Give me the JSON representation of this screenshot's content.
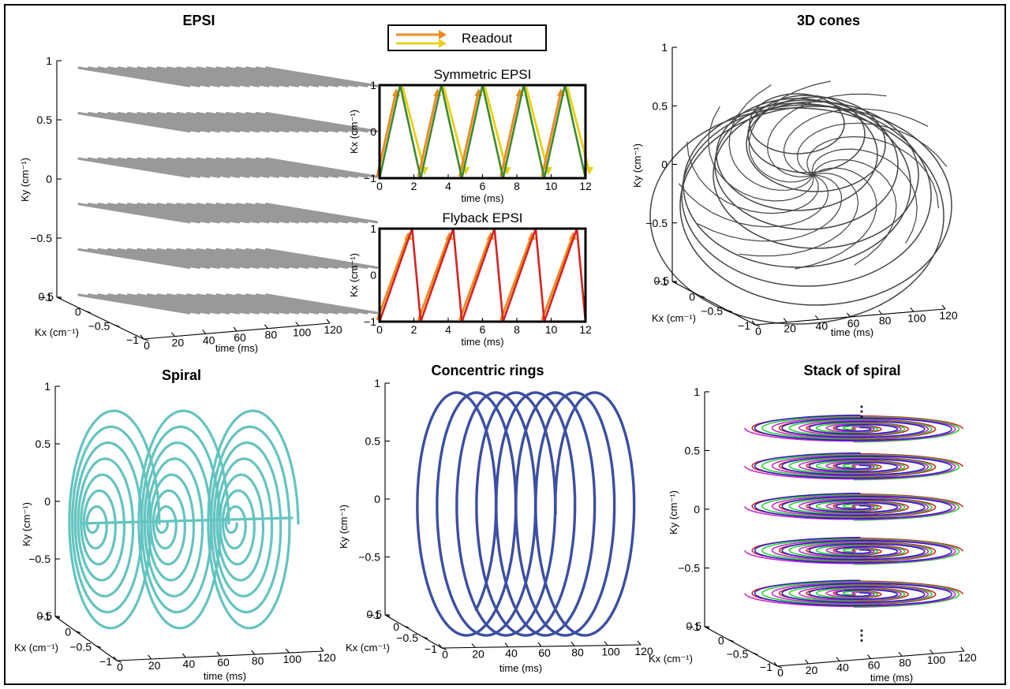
{
  "figure": {
    "legend_label": "Readout",
    "ellipsis_top": "⋮",
    "ellipsis_bottom": "⋮"
  },
  "colors": {
    "epsi": "#999999",
    "cones": "#444444",
    "spiral": "#63c4c0",
    "rings": "#3c4fa3",
    "symmetric": "#3c8a2e",
    "flyback": "#d62222",
    "readout_orange": "#ee8a22",
    "readout_yellow": "#e8d21e",
    "stack": [
      "#d12020",
      "#1fd12a",
      "#cc22cc",
      "#2222cc"
    ]
  },
  "chart_data": [
    {
      "id": "epsi",
      "type": "line",
      "title": "EPSI",
      "xlabel": "time (ms)",
      "ylabel": "Ky (cm⁻¹)",
      "zlabel": "Kx (cm⁻¹)",
      "xticks": [
        "0",
        "20",
        "40",
        "60",
        "80",
        "100",
        "120"
      ],
      "yticks": [
        "−1",
        "−0.5",
        "0",
        "0.5",
        "1"
      ],
      "zticks": [
        "0.5",
        "0",
        "−0.5",
        "−1"
      ],
      "xlim": [
        0,
        120
      ],
      "ylim": [
        -1,
        1
      ],
      "ky_levels": [
        -1,
        -0.6,
        -0.2,
        0.2,
        0.6,
        1
      ],
      "readouts_per_level": 20
    },
    {
      "id": "symmetric",
      "type": "line",
      "title": "Symmetric EPSI",
      "xlabel": "time (ms)",
      "ylabel": "Kx (cm⁻¹)",
      "xticks": [
        "0",
        "2",
        "4",
        "6",
        "8",
        "10",
        "12"
      ],
      "yticks": [
        "−1",
        "0",
        "1"
      ],
      "xlim": [
        0,
        12
      ],
      "ylim": [
        -1,
        1
      ],
      "series": [
        {
          "x": [
            0,
            1.2,
            2.4,
            3.6,
            4.8,
            6.0,
            7.2,
            8.4,
            9.6,
            10.8,
            12
          ],
          "y": [
            -1,
            1,
            -1,
            1,
            -1,
            1,
            -1,
            1,
            -1,
            1,
            -1
          ]
        }
      ]
    },
    {
      "id": "flyback",
      "type": "line",
      "title": "Flyback EPSI",
      "xlabel": "time (ms)",
      "ylabel": "Kx (cm⁻¹)",
      "xticks": [
        "0",
        "2",
        "4",
        "6",
        "8",
        "10",
        "12"
      ],
      "yticks": [
        "−1",
        "0",
        "1"
      ],
      "xlim": [
        0,
        12
      ],
      "ylim": [
        -1,
        1
      ],
      "series": [
        {
          "x": [
            0,
            1.9,
            2.4,
            4.3,
            4.8,
            6.7,
            7.2,
            9.1,
            9.6,
            11.5,
            12
          ],
          "y": [
            -1,
            1,
            -1,
            1,
            -1,
            1,
            -1,
            1,
            -1,
            1,
            -1
          ]
        }
      ]
    },
    {
      "id": "cones",
      "type": "line",
      "title": "3D cones",
      "xlabel": "time (ms)",
      "ylabel": "Ky (cm⁻¹)",
      "zlabel": "Kx (cm⁻¹)",
      "xticks": [
        "0",
        "20",
        "40",
        "60",
        "80",
        "100",
        "120"
      ],
      "yticks": [
        "−1",
        "−0.5",
        "0",
        "0.5",
        "1"
      ],
      "zticks": [
        "0.5",
        "0",
        "−0.5",
        "−1"
      ]
    },
    {
      "id": "spiral",
      "type": "line",
      "title": "Spiral",
      "xlabel": "time (ms)",
      "ylabel": "Ky (cm⁻¹)",
      "zlabel": "Kx (cm⁻¹)",
      "xticks": [
        "0",
        "20",
        "40",
        "60",
        "80",
        "100",
        "120"
      ],
      "yticks": [
        "−1",
        "−0.5",
        "0",
        "0.5",
        "1"
      ],
      "zticks": [
        "0.5",
        "0",
        "−0.5",
        "−1"
      ],
      "interleaves": 3
    },
    {
      "id": "rings",
      "type": "line",
      "title": "Concentric  rings",
      "xlabel": "time (ms)",
      "ylabel": "Ky (cm⁻¹)",
      "zlabel": "Kx (cm⁻¹)",
      "xticks": [
        "0",
        "20",
        "40",
        "60",
        "80",
        "100",
        "120"
      ],
      "yticks": [
        "−1",
        "−0.5",
        "0",
        "0.5",
        "1"
      ],
      "zticks": [
        "0.5",
        "0",
        "−0.5",
        "−1"
      ],
      "rings": 8
    },
    {
      "id": "stack",
      "type": "line",
      "title": "Stack of spiral",
      "xlabel": "time (ms)",
      "ylabel": "Ky (cm⁻¹)",
      "zlabel": "Kx (cm⁻¹)",
      "xticks": [
        "0",
        "20",
        "40",
        "60",
        "80",
        "100",
        "120"
      ],
      "yticks": [
        "−1",
        "−0.5",
        "0",
        "0.5",
        "1"
      ],
      "zticks": [
        "0.5",
        "0",
        "−0.5",
        "−1"
      ],
      "ky_levels": [
        0.64,
        0.34,
        0.02,
        -0.33,
        -0.67
      ]
    }
  ]
}
